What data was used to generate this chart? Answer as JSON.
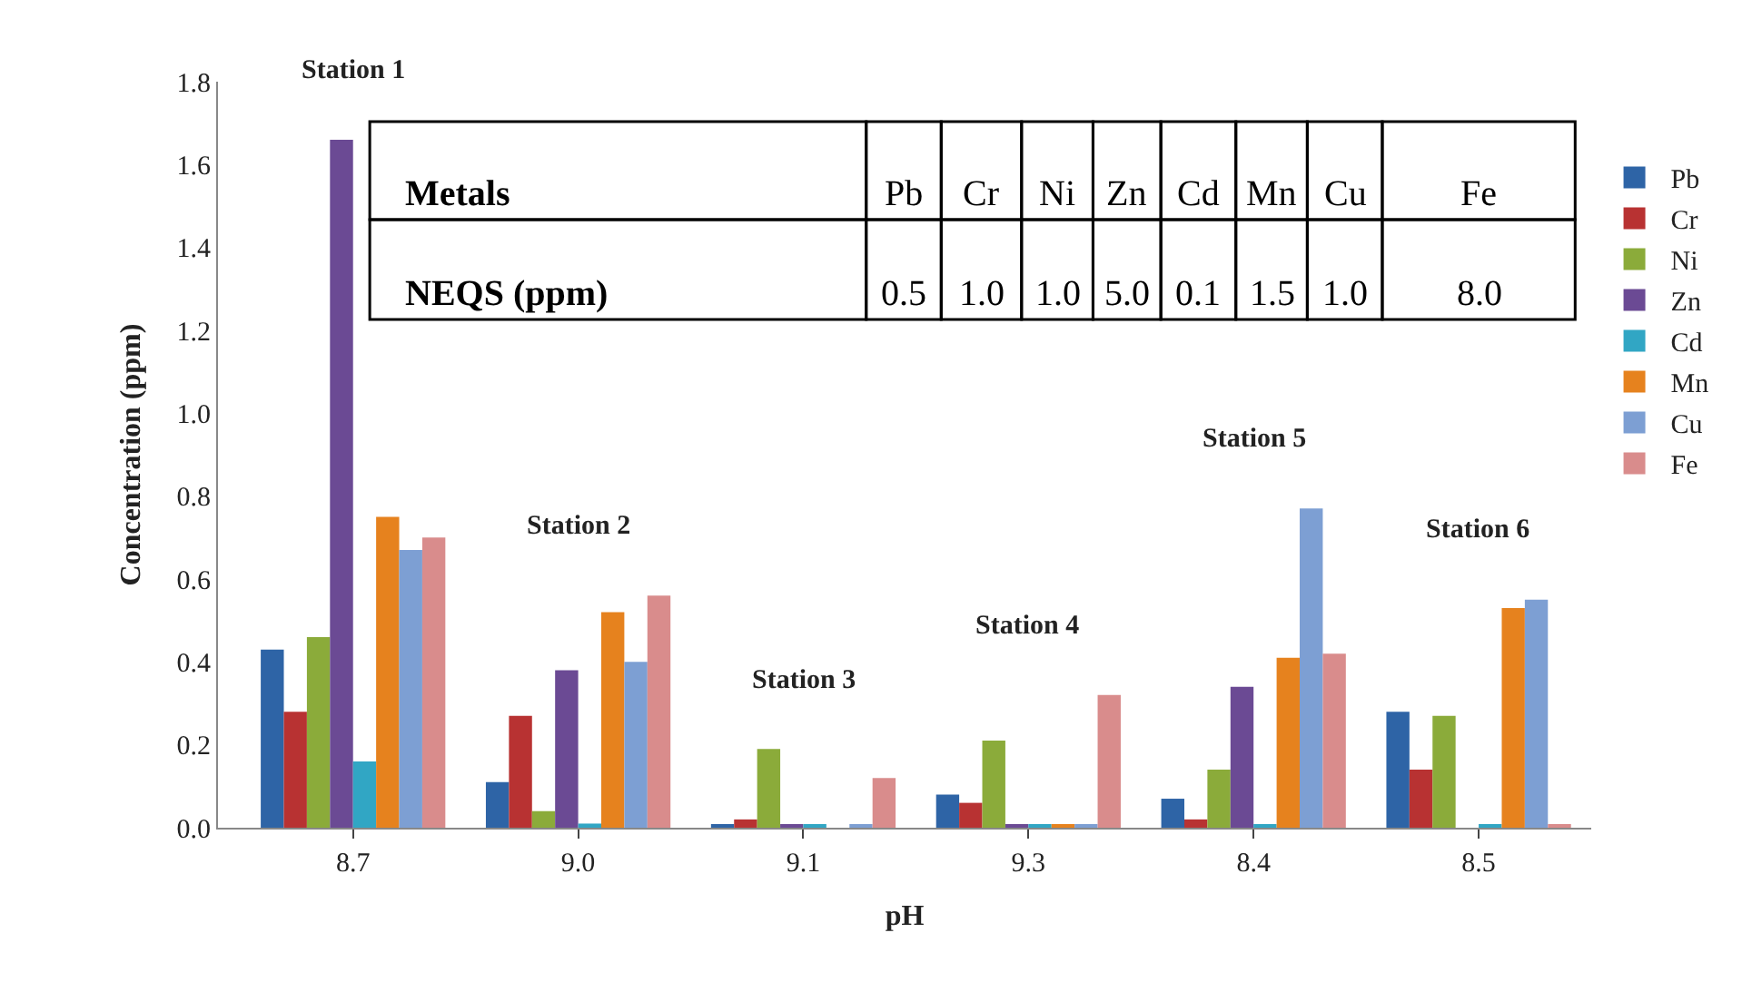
{
  "chart_data": {
    "type": "bar",
    "xlabel": "pH",
    "ylabel": "Concentration (ppm)",
    "categories": [
      "8.7",
      "9.0",
      "9.1",
      "9.3",
      "8.4",
      "8.5"
    ],
    "series": [
      {
        "name": "Pb",
        "color": "#2e64a6",
        "values": [
          0.43,
          0.11,
          0.005,
          0.08,
          0.07,
          0.28
        ]
      },
      {
        "name": "Cr",
        "color": "#b83232",
        "values": [
          0.28,
          0.27,
          0.02,
          0.06,
          0.02,
          0.14
        ]
      },
      {
        "name": "Ni",
        "color": "#8bab3a",
        "values": [
          0.46,
          0.04,
          0.19,
          0.21,
          0.14,
          0.27
        ]
      },
      {
        "name": "Zn",
        "color": "#6b4a94",
        "values": [
          1.66,
          0.38,
          0.005,
          0.005,
          0.34,
          0
        ]
      },
      {
        "name": "Cd",
        "color": "#31a6c4",
        "values": [
          0.16,
          0.01,
          0.005,
          0.005,
          0.005,
          0.005
        ]
      },
      {
        "name": "Mn",
        "color": "#e6821e",
        "values": [
          0.75,
          0.52,
          0,
          0.005,
          0.41,
          0.53
        ]
      },
      {
        "name": "Cu",
        "color": "#7d9fd3",
        "values": [
          0.67,
          0.4,
          0.005,
          0.005,
          0.77,
          0.55
        ]
      },
      {
        "name": "Fe",
        "color": "#d98c8c",
        "values": [
          0.7,
          0.56,
          0.12,
          0.32,
          0.42,
          0.005
        ]
      }
    ],
    "ylim": [
      0,
      1.8
    ],
    "yticks": [
      {
        "value": 0,
        "label": "0.0"
      },
      {
        "value": 0.2,
        "label": "0.2"
      },
      {
        "value": 0.4,
        "label": "0.4"
      },
      {
        "value": 0.6,
        "label": "0.6"
      },
      {
        "value": 0.8,
        "label": "0.8"
      },
      {
        "value": 1.0,
        "label": "1.0"
      },
      {
        "value": 1.2,
        "label": "1.2"
      },
      {
        "value": 1.4,
        "label": "1.4"
      },
      {
        "value": 1.6,
        "label": "1.6"
      },
      {
        "value": 1.8,
        "label": "1.8"
      }
    ],
    "legend": "right",
    "annotations": [
      "Station 1",
      "Station 2",
      "Station 3",
      "Station 4",
      "Station 5",
      "Station 6",
      "Metals",
      "Pb",
      "Cr",
      "Ni",
      "Zn",
      "Cd",
      "Mn",
      "Cu",
      "Fe",
      "NEQS (ppm)",
      "0.5",
      "1.0",
      "1.0",
      "5.0",
      "0.1",
      "1.5",
      "1.0",
      "8.0"
    ]
  }
}
